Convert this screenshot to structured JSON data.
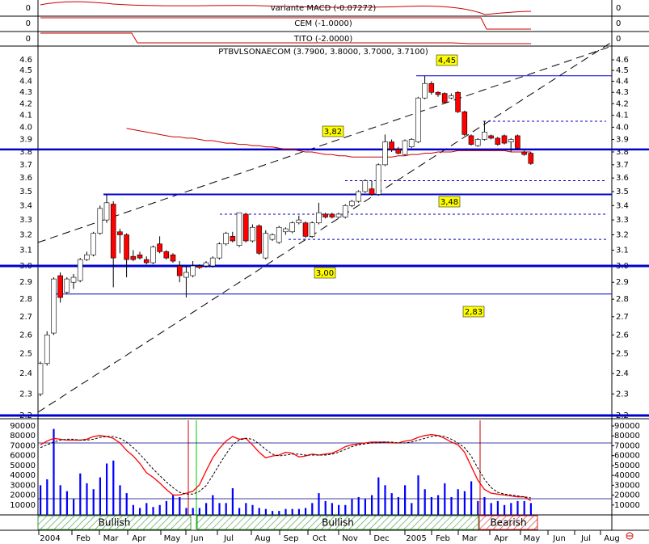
{
  "chart_data": {
    "type": "candlestick",
    "title": "PTBVLSONAECOM (3.7900, 3.8000, 3.7000, 3.7100)",
    "indicators": [
      {
        "label": "variante MACD (-0.07272)",
        "yticks": [
          0
        ]
      },
      {
        "label": "CEM (-1.0000)",
        "yticks": [
          0
        ]
      },
      {
        "label": "TITO (-2.0000)",
        "yticks": [
          0
        ]
      }
    ],
    "log_scale": true,
    "ylim": [
      2.2,
      4.6
    ],
    "yticks": [
      4.6,
      4.5,
      4.4,
      4.3,
      4.2,
      4.1,
      {
        "value": 4,
        "label": "4.0"
      },
      3.9,
      3.8,
      3.7,
      3.6,
      3.5,
      3.4,
      3.3,
      3.2,
      3.1,
      {
        "value": 3,
        "label": "3.0"
      },
      2.9,
      2.8,
      2.7,
      2.6,
      2.5,
      2.4,
      2.3,
      2.2
    ],
    "up_color": "#ffffff",
    "down_color": "#ff0000",
    "candles": [
      [
        2.3,
        2.46,
        2.29,
        2.45
      ],
      [
        2.45,
        2.62,
        2.44,
        2.6
      ],
      [
        2.61,
        2.93,
        2.6,
        2.92
      ],
      [
        2.94,
        2.96,
        2.78,
        2.81
      ],
      [
        2.84,
        2.93,
        2.83,
        2.92
      ],
      [
        2.9,
        2.95,
        2.86,
        2.93
      ],
      [
        2.91,
        3.05,
        2.9,
        3.04
      ],
      [
        3.04,
        3.09,
        3.03,
        3.07
      ],
      [
        3.07,
        3.22,
        3.06,
        3.21
      ],
      [
        3.21,
        3.4,
        3.2,
        3.38
      ],
      [
        3.3,
        3.48,
        3.28,
        3.42
      ],
      [
        3.41,
        3.43,
        2.87,
        3.05
      ],
      [
        3.22,
        3.24,
        3.08,
        3.2
      ],
      [
        3.2,
        3.21,
        2.93,
        3.04
      ],
      [
        3.06,
        3.1,
        3.03,
        3.04
      ],
      [
        3.07,
        3.09,
        3.04,
        3.05
      ],
      [
        3.04,
        3.06,
        3.01,
        3.02
      ],
      [
        3.02,
        3.13,
        3.01,
        3.12
      ],
      [
        3.14,
        3.19,
        3.08,
        3.09
      ],
      [
        3.09,
        3.1,
        3.04,
        3.05
      ],
      [
        3.07,
        3.08,
        3.02,
        3.03
      ],
      [
        3.0,
        3.03,
        2.9,
        2.94
      ],
      [
        2.93,
        3.0,
        2.81,
        2.96
      ],
      [
        2.94,
        3.03,
        2.93,
        3.0
      ],
      [
        3.0,
        3.01,
        2.98,
        2.99
      ],
      [
        3.0,
        3.03,
        2.99,
        3.02
      ],
      [
        3.0,
        3.06,
        2.99,
        3.05
      ],
      [
        3.05,
        3.15,
        3.04,
        3.14
      ],
      [
        3.14,
        3.22,
        3.13,
        3.21
      ],
      [
        3.19,
        3.22,
        3.15,
        3.16
      ],
      [
        3.13,
        3.35,
        3.12,
        3.35
      ],
      [
        3.34,
        3.35,
        3.15,
        3.16
      ],
      [
        3.16,
        3.27,
        3.15,
        3.25
      ],
      [
        3.26,
        3.27,
        3.07,
        3.08
      ],
      [
        3.05,
        3.23,
        3.04,
        3.21
      ],
      [
        3.17,
        3.21,
        3.16,
        3.2
      ],
      [
        3.15,
        3.26,
        3.14,
        3.25
      ],
      [
        3.22,
        3.25,
        3.2,
        3.24
      ],
      [
        3.22,
        3.29,
        3.21,
        3.28
      ],
      [
        3.28,
        3.33,
        3.27,
        3.3
      ],
      [
        3.28,
        3.29,
        3.18,
        3.19
      ],
      [
        3.19,
        3.29,
        3.18,
        3.28
      ],
      [
        3.28,
        3.42,
        3.27,
        3.35
      ],
      [
        3.34,
        3.35,
        3.31,
        3.32
      ],
      [
        3.34,
        3.35,
        3.31,
        3.32
      ],
      [
        3.32,
        3.35,
        3.31,
        3.34
      ],
      [
        3.32,
        3.41,
        3.31,
        3.4
      ],
      [
        3.4,
        3.44,
        3.39,
        3.43
      ],
      [
        3.43,
        3.51,
        3.42,
        3.5
      ],
      [
        3.5,
        3.59,
        3.49,
        3.58
      ],
      [
        3.52,
        3.58,
        3.47,
        3.48
      ],
      [
        3.48,
        3.71,
        3.47,
        3.7
      ],
      [
        3.7,
        3.94,
        3.69,
        3.88
      ],
      [
        3.88,
        3.9,
        3.8,
        3.82
      ],
      [
        3.82,
        3.84,
        3.78,
        3.79
      ],
      [
        3.78,
        3.9,
        3.77,
        3.89
      ],
      [
        3.84,
        3.91,
        3.83,
        3.9
      ],
      [
        3.88,
        4.26,
        3.87,
        4.25
      ],
      [
        4.25,
        4.45,
        4.24,
        4.38
      ],
      [
        4.38,
        4.4,
        4.28,
        4.3
      ],
      [
        4.3,
        4.31,
        4.26,
        4.28
      ],
      [
        4.29,
        4.3,
        4.2,
        4.21
      ],
      [
        4.25,
        4.29,
        4.24,
        4.27
      ],
      [
        4.3,
        4.31,
        4.12,
        4.13
      ],
      [
        4.13,
        4.14,
        3.93,
        3.94
      ],
      [
        3.93,
        3.94,
        3.85,
        3.86
      ],
      [
        3.85,
        3.91,
        3.84,
        3.9
      ],
      [
        3.9,
        4.05,
        3.89,
        3.96
      ],
      [
        3.93,
        3.94,
        3.9,
        3.91
      ],
      [
        3.91,
        3.92,
        3.85,
        3.86
      ],
      [
        3.93,
        3.94,
        3.86,
        3.87
      ],
      [
        3.88,
        3.91,
        3.8,
        3.9
      ],
      [
        3.93,
        3.94,
        3.82,
        3.83
      ],
      [
        3.8,
        3.81,
        3.77,
        3.78
      ],
      [
        3.79,
        3.8,
        3.7,
        3.71
      ]
    ],
    "moving_average": {
      "color": "#cc0000",
      "values": [
        null,
        null,
        null,
        null,
        null,
        null,
        null,
        null,
        null,
        null,
        null,
        null,
        null,
        3.99,
        3.98,
        3.97,
        3.96,
        3.95,
        3.94,
        3.93,
        3.92,
        3.92,
        3.91,
        3.91,
        3.9,
        3.89,
        3.89,
        3.88,
        3.87,
        3.87,
        3.86,
        3.86,
        3.85,
        3.85,
        3.84,
        3.84,
        3.83,
        3.82,
        3.82,
        3.81,
        3.8,
        3.8,
        3.79,
        3.78,
        3.78,
        3.77,
        3.77,
        3.76,
        3.76,
        3.76,
        3.76,
        3.76,
        3.76,
        3.76,
        3.77,
        3.77,
        3.78,
        3.78,
        3.79,
        3.79,
        3.8,
        3.8,
        3.8,
        3.81,
        3.81,
        3.81,
        3.81,
        3.81,
        3.81,
        3.81,
        3.81,
        3.8,
        3.8,
        3.8,
        3.8
      ]
    },
    "levels": [
      {
        "value": 4.45,
        "label": "4,45"
      },
      {
        "value": 3.82,
        "label": "3,82"
      },
      {
        "value": 3.48,
        "label": "3,48"
      },
      {
        "value": 3.0,
        "label": "3,00"
      },
      {
        "value": 2.83,
        "label": "2,83"
      }
    ],
    "dashed_levels": [
      4.05,
      3.58,
      3.34,
      3.17
    ],
    "volume": {
      "color": "#0000ff",
      "ylim": [
        0,
        90000
      ],
      "yticks": [
        10000,
        20000,
        30000,
        40000,
        50000,
        60000,
        70000,
        80000,
        90000
      ],
      "values": [
        30000,
        36000,
        87000,
        30000,
        24000,
        16000,
        42000,
        32000,
        26000,
        38000,
        52000,
        55000,
        30000,
        22000,
        10000,
        7000,
        12000,
        8000,
        10000,
        14000,
        20000,
        18000,
        7000,
        7000,
        7000,
        12000,
        20000,
        12000,
        12000,
        27000,
        7000,
        12000,
        10000,
        7000,
        6000,
        4000,
        4000,
        6000,
        6000,
        6000,
        7000,
        12000,
        22000,
        14000,
        12000,
        10000,
        10000,
        16000,
        18000,
        16000,
        20000,
        38000,
        30000,
        22000,
        18000,
        30000,
        12000,
        40000,
        26000,
        18000,
        20000,
        32000,
        18000,
        26000,
        24000,
        34000,
        14000,
        18000,
        12000,
        14000,
        10000,
        12000,
        14000,
        14000,
        12000
      ]
    },
    "oscillator": {
      "ylim": [
        0,
        100
      ],
      "levels": [
        80,
        20
      ],
      "series": [
        {
          "color": "#ff0000",
          "values": [
            78,
            82,
            85,
            84,
            83,
            83,
            83,
            84,
            87,
            88,
            87,
            85,
            80,
            72,
            66,
            58,
            48,
            43,
            37,
            30,
            24,
            24,
            26,
            28,
            35,
            50,
            64,
            74,
            82,
            87,
            84,
            85,
            78,
            70,
            64,
            66,
            67,
            70,
            69,
            65,
            66,
            68,
            67,
            68,
            69,
            72,
            76,
            78,
            79,
            80,
            81,
            81,
            81,
            80,
            80,
            82,
            83,
            86,
            88,
            89,
            88,
            85,
            81,
            78,
            70,
            55,
            40,
            30,
            26,
            25,
            24,
            23,
            22,
            22,
            18
          ]
        },
        {
          "color": "#000000",
          "values": [
            75,
            78,
            81,
            83,
            84,
            84,
            83,
            83,
            84,
            86,
            87,
            87,
            85,
            81,
            75,
            68,
            60,
            52,
            45,
            38,
            32,
            27,
            25,
            25,
            28,
            34,
            45,
            57,
            68,
            78,
            83,
            85,
            84,
            79,
            73,
            68,
            66,
            67,
            68,
            68,
            67,
            67,
            67,
            67,
            68,
            70,
            73,
            76,
            78,
            79,
            80,
            80,
            81,
            81,
            80,
            80,
            81,
            83,
            85,
            87,
            88,
            87,
            84,
            80,
            75,
            66,
            53,
            41,
            32,
            27,
            25,
            24,
            23,
            22,
            21
          ]
        }
      ]
    },
    "regimes": [
      {
        "label": "Bullish",
        "color": "#3c963c"
      },
      {
        "label": "Bullish",
        "color": "#3c963c"
      },
      {
        "label": "Bearish",
        "color": "#d02020"
      }
    ],
    "x_labels": [
      "2004",
      "Feb",
      "Mar",
      "Apr",
      "May",
      "Jun",
      "Jul",
      "Aug",
      "Sep",
      "Oct",
      "Nov",
      "Dec",
      "2005",
      "Feb",
      "Mar",
      "Apr",
      "May",
      "Jun",
      "Jul",
      "Aug"
    ]
  }
}
